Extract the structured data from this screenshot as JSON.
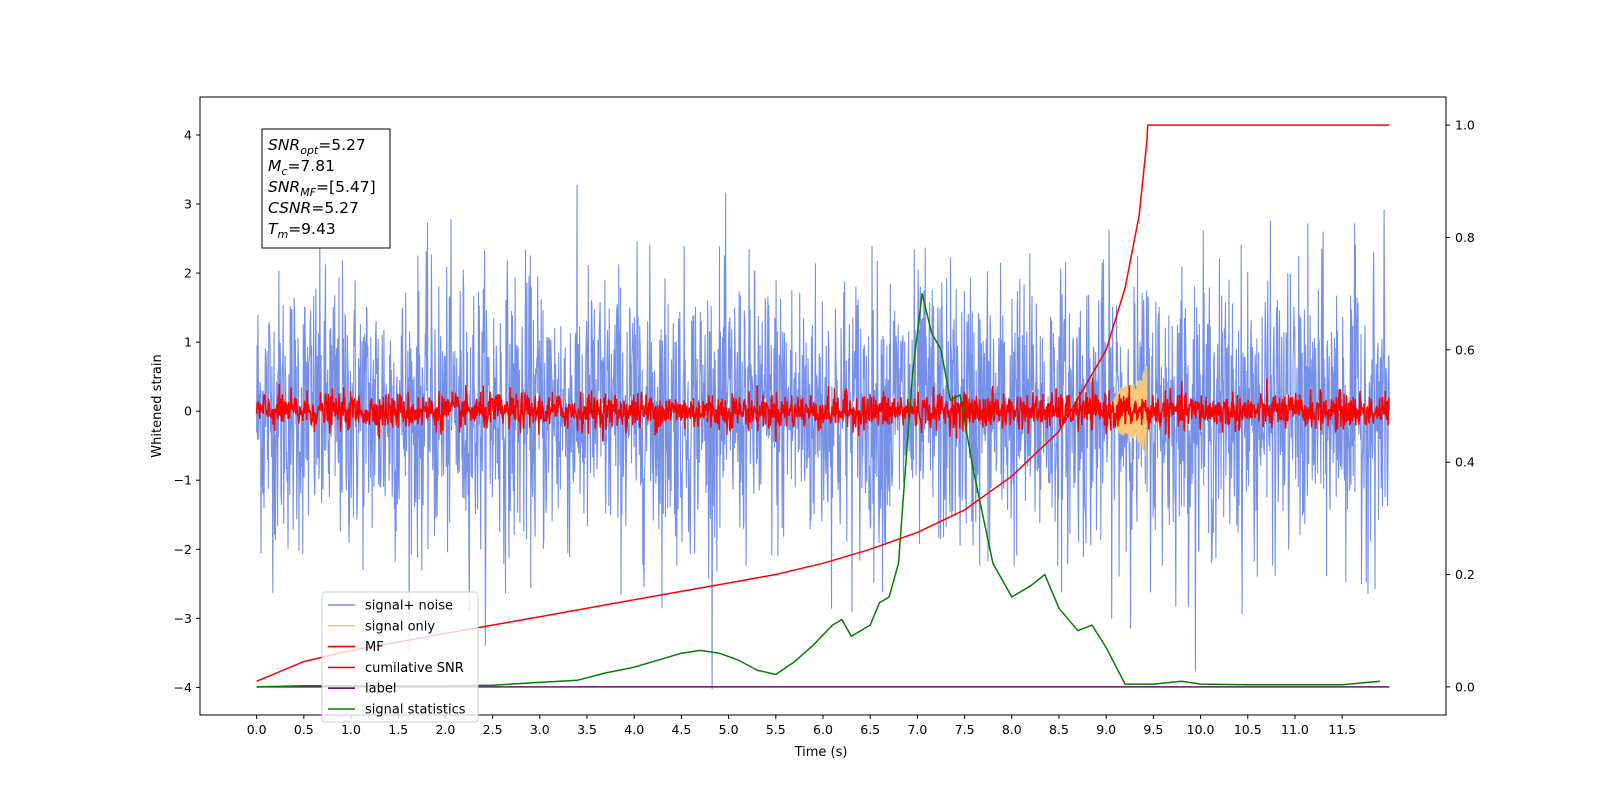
{
  "chart_data": {
    "type": "line",
    "title": "",
    "xlabel": "Time (s)",
    "ylabel": "Whitened strain",
    "xlim": [
      -0.6,
      12.6
    ],
    "ylim": [
      -4.4,
      4.55
    ],
    "y2lim": [
      -0.05,
      1.05
    ],
    "x_ticks": [
      0.0,
      0.5,
      1.0,
      1.5,
      2.0,
      2.5,
      3.0,
      3.5,
      4.0,
      4.5,
      5.0,
      5.5,
      6.0,
      6.5,
      7.0,
      7.5,
      8.0,
      8.5,
      9.0,
      9.5,
      10.0,
      10.5,
      11.0,
      11.5
    ],
    "x_tick_labels": [
      "0.0",
      "0.5",
      "1.0",
      "1.5",
      "2.0",
      "2.5",
      "3.0",
      "3.5",
      "4.0",
      "4.5",
      "5.0",
      "5.5",
      "6.0",
      "6.5",
      "7.0",
      "7.5",
      "8.0",
      "8.5",
      "9.0",
      "9.5",
      "10.0",
      "10.5",
      "11.0",
      "11.5"
    ],
    "y_ticks": [
      -4,
      -3,
      -2,
      -1,
      0,
      1,
      2,
      3,
      4
    ],
    "y_tick_labels": [
      "−4",
      "−3",
      "−2",
      "−1",
      "0",
      "1",
      "2",
      "3",
      "4"
    ],
    "y2_ticks": [
      0.0,
      0.2,
      0.4,
      0.6,
      0.8,
      1.0
    ],
    "y2_tick_labels": [
      "0.0",
      "0.2",
      "0.4",
      "0.6",
      "0.8",
      "1.0"
    ],
    "grid": false,
    "legend_position": "lower-left",
    "annotation": {
      "lines": [
        {
          "main": "SNR",
          "sub": "opt",
          "rest": "=5.27"
        },
        {
          "main": "M",
          "sub": "c",
          "rest": "=7.81"
        },
        {
          "main": "SNR",
          "sub": "MF",
          "rest": "=[5.47]"
        },
        {
          "main": "CSNR",
          "sub": "",
          "rest": "=5.27"
        },
        {
          "main": "T",
          "sub": "m",
          "rest": "=9.43"
        }
      ]
    },
    "series": [
      {
        "name": "signal+ noise",
        "axis": "left",
        "color": "#7590e6",
        "kind": "noise",
        "x_range": [
          0.0,
          12.0
        ],
        "amplitude_std": 1.0
      },
      {
        "name": "signal only",
        "axis": "left",
        "color": "#f5c87a",
        "kind": "chirp",
        "x_range": [
          9.0,
          9.43
        ],
        "peak": 0.65
      },
      {
        "name": "MF",
        "axis": "left",
        "color": "#ff0000",
        "kind": "noise",
        "x_range": [
          0.0,
          12.0
        ],
        "amplitude_std": 0.13
      },
      {
        "name": "cumilative SNR",
        "axis": "right",
        "color": "#ff0000",
        "x": [
          0.0,
          0.5,
          1.0,
          1.5,
          2.0,
          2.5,
          3.0,
          3.5,
          4.0,
          4.5,
          5.0,
          5.5,
          6.0,
          6.5,
          7.0,
          7.5,
          8.0,
          8.5,
          9.0,
          9.2,
          9.35,
          9.43,
          9.44,
          12.0
        ],
        "y": [
          0.01,
          0.045,
          0.065,
          0.08,
          0.095,
          0.11,
          0.125,
          0.14,
          0.155,
          0.17,
          0.185,
          0.2,
          0.22,
          0.245,
          0.275,
          0.315,
          0.375,
          0.455,
          0.6,
          0.71,
          0.84,
          0.97,
          1.0,
          1.0
        ]
      },
      {
        "name": "label",
        "axis": "right",
        "color": "#6a0f6a",
        "x": [
          0.0,
          12.0
        ],
        "y": [
          0.0,
          0.0
        ]
      },
      {
        "name": "signal statistics",
        "axis": "right",
        "color": "#008000",
        "x": [
          0.0,
          0.5,
          1.0,
          1.5,
          2.0,
          2.5,
          3.0,
          3.4,
          3.7,
          4.0,
          4.3,
          4.5,
          4.7,
          4.9,
          5.1,
          5.3,
          5.5,
          5.7,
          5.9,
          6.1,
          6.2,
          6.3,
          6.5,
          6.6,
          6.7,
          6.8,
          6.9,
          6.95,
          7.05,
          7.15,
          7.25,
          7.35,
          7.45,
          7.6,
          7.8,
          8.0,
          8.2,
          8.35,
          8.5,
          8.7,
          8.85,
          9.0,
          9.2,
          9.5,
          9.8,
          10.0,
          10.5,
          11.0,
          11.5,
          11.9
        ],
        "y": [
          0.0,
          0.002,
          0.002,
          0.002,
          0.002,
          0.003,
          0.008,
          0.012,
          0.025,
          0.035,
          0.05,
          0.06,
          0.065,
          0.06,
          0.048,
          0.03,
          0.022,
          0.045,
          0.075,
          0.11,
          0.12,
          0.09,
          0.11,
          0.15,
          0.16,
          0.22,
          0.45,
          0.56,
          0.7,
          0.63,
          0.6,
          0.51,
          0.52,
          0.38,
          0.22,
          0.16,
          0.18,
          0.2,
          0.14,
          0.1,
          0.11,
          0.07,
          0.005,
          0.005,
          0.01,
          0.005,
          0.004,
          0.004,
          0.004,
          0.01
        ]
      }
    ]
  }
}
